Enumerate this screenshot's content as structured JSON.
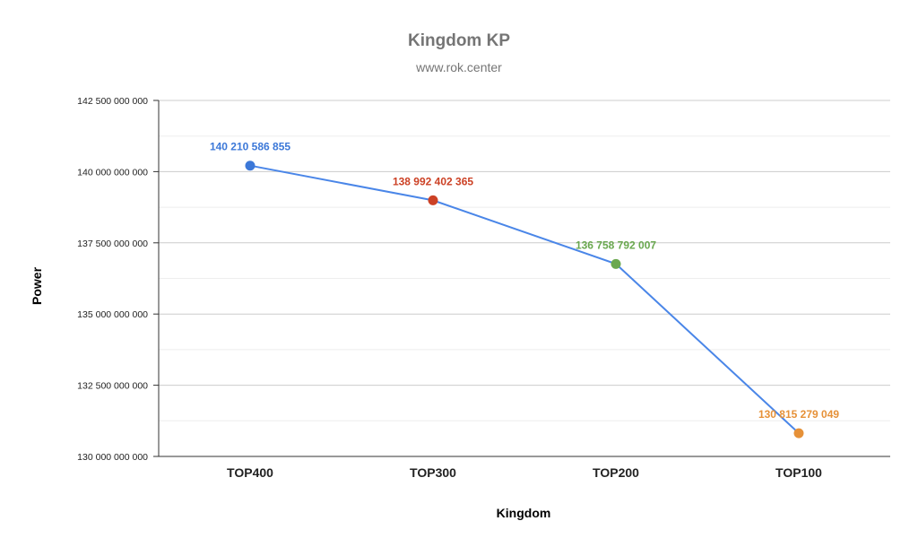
{
  "chart_data": {
    "type": "line",
    "title": "Kingdom KP",
    "subtitle": "www.rok.center",
    "xlabel": "Kingdom",
    "ylabel": "Power",
    "categories": [
      "TOP400",
      "TOP300",
      "TOP200",
      "TOP100"
    ],
    "series": [
      {
        "name": "Power",
        "values": [
          140210586855,
          138992402365,
          136758792007,
          130815279049
        ]
      }
    ],
    "data_labels": [
      "140 210 586 855",
      "138 992 402 365",
      "136 758 792 007",
      "130 815 279 049"
    ],
    "point_colors": [
      "#3c78d8",
      "#cc4125",
      "#6aa84f",
      "#e69138"
    ],
    "line_color": "#4a86e8",
    "ylim": [
      130000000000,
      142500000000
    ],
    "yticks": [
      130000000000,
      132500000000,
      135000000000,
      137500000000,
      140000000000,
      142500000000
    ],
    "ytick_labels": [
      "130 000 000 000",
      "132 500 000 000",
      "135 000 000 000",
      "137 500 000 000",
      "140 000 000 000",
      "142 500 000 000"
    ],
    "grid": true
  }
}
